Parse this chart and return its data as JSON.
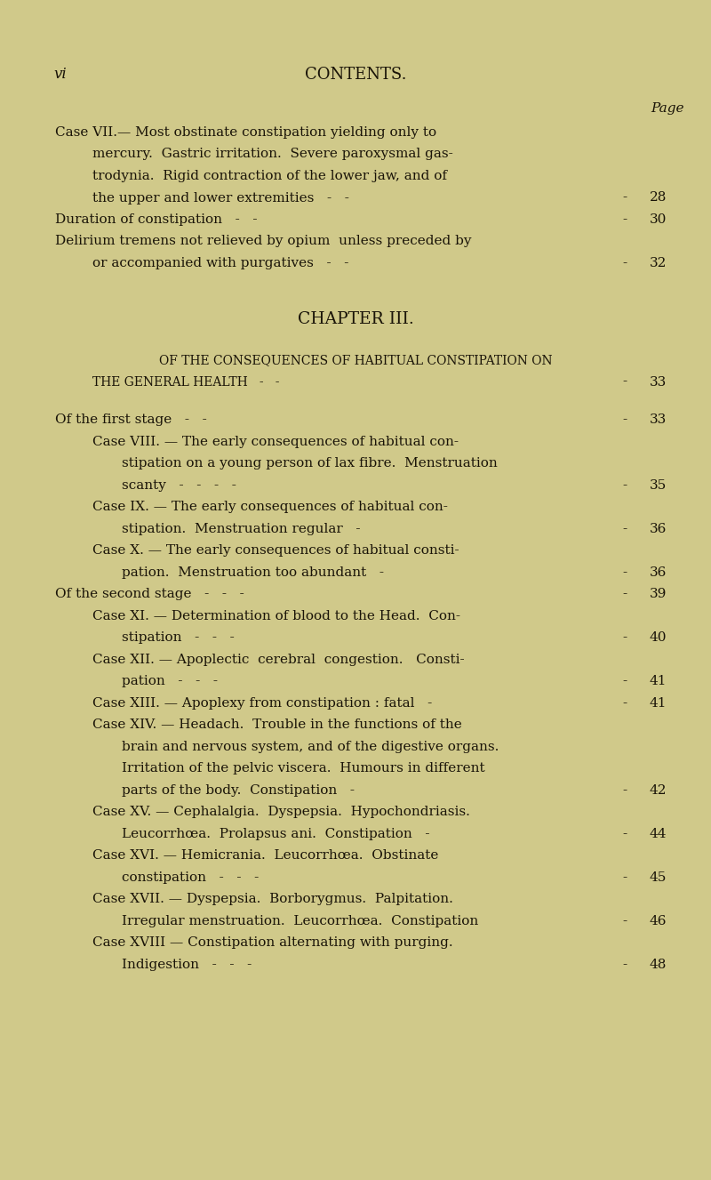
{
  "bg_color": "#d0c98a",
  "text_color": "#1a1408",
  "page_width": 8.0,
  "page_height": 13.27,
  "dpi": 100,
  "header_left": "vi",
  "header_center": "CONTENTS.",
  "page_label": "Page",
  "lines": [
    {
      "indent": 0,
      "style": "case",
      "text": "Case VII.— Most obstinate constipation yielding only to",
      "page": null
    },
    {
      "indent": 1,
      "style": "normal",
      "text": "mercury.  Gastric irritation.  Severe paroxysmal gas-",
      "page": null
    },
    {
      "indent": 1,
      "style": "normal",
      "text": "trodynia.  Rigid contraction of the lower jaw, and of",
      "page": null
    },
    {
      "indent": 1,
      "style": "normal",
      "text": "the upper and lower extremities   -   -",
      "page": "28"
    },
    {
      "indent": 0,
      "style": "normal",
      "text": "Duration of constipation   -   -",
      "page": "30"
    },
    {
      "indent": 0,
      "style": "normal",
      "text": "Delirium tremens not relieved by opium  unless preceded by",
      "page": null
    },
    {
      "indent": 1,
      "style": "normal",
      "text": "or accompanied with purgatives   -   -",
      "page": "32"
    },
    {
      "indent": 0,
      "style": "blank",
      "text": "",
      "page": null
    },
    {
      "indent": 0,
      "style": "blank",
      "text": "",
      "page": null
    },
    {
      "indent": 0,
      "style": "chapter_center",
      "text": "CHAPTER III.",
      "page": null
    },
    {
      "indent": 0,
      "style": "blank",
      "text": "",
      "page": null
    },
    {
      "indent": 0,
      "style": "small_caps_center",
      "text": "OF THE CONSEQUENCES OF HABITUAL CONSTIPATION ON",
      "page": null
    },
    {
      "indent": 1,
      "style": "small_caps_left",
      "text": "THE GENERAL HEALTH   -   -",
      "page": "33"
    },
    {
      "indent": 0,
      "style": "blank",
      "text": "",
      "page": null
    },
    {
      "indent": 0,
      "style": "normal",
      "text": "Of the first stage   -   -",
      "page": "33"
    },
    {
      "indent": 1,
      "style": "case",
      "text": "Case VIII. — The early consequences of habitual con-",
      "page": null
    },
    {
      "indent": 2,
      "style": "normal",
      "text": "stipation on a young person of lax fibre.  Menstruation",
      "page": null
    },
    {
      "indent": 2,
      "style": "normal",
      "text": "scanty   -   -   -   -",
      "page": "35"
    },
    {
      "indent": 1,
      "style": "case",
      "text": "Case IX. — The early consequences of habitual con-",
      "page": null
    },
    {
      "indent": 2,
      "style": "normal",
      "text": "stipation.  Menstruation regular   -",
      "page": "36"
    },
    {
      "indent": 1,
      "style": "case",
      "text": "Case X. — The early consequences of habitual consti-",
      "page": null
    },
    {
      "indent": 2,
      "style": "normal",
      "text": "pation.  Menstruation too abundant   -",
      "page": "36"
    },
    {
      "indent": 0,
      "style": "normal",
      "text": "Of the second stage   -   -   -",
      "page": "39"
    },
    {
      "indent": 1,
      "style": "case",
      "text": "Case XI. — Determination of blood to the Head.  Con-",
      "page": null
    },
    {
      "indent": 2,
      "style": "normal",
      "text": "stipation   -   -   -",
      "page": "40"
    },
    {
      "indent": 1,
      "style": "case",
      "text": "Case XII. — Apoplectic  cerebral  congestion.   Consti-",
      "page": null
    },
    {
      "indent": 2,
      "style": "normal",
      "text": "pation   -   -   -",
      "page": "41"
    },
    {
      "indent": 1,
      "style": "case",
      "text": "Case XIII. — Apoplexy from constipation : fatal   -",
      "page": "41"
    },
    {
      "indent": 1,
      "style": "case",
      "text": "Case XIV. — Headach.  Trouble in the functions of the",
      "page": null
    },
    {
      "indent": 2,
      "style": "normal",
      "text": "brain and nervous system, and of the digestive organs.",
      "page": null
    },
    {
      "indent": 2,
      "style": "normal",
      "text": "Irritation of the pelvic viscera.  Humours in different",
      "page": null
    },
    {
      "indent": 2,
      "style": "normal",
      "text": "parts of the body.  Constipation   -",
      "page": "42"
    },
    {
      "indent": 1,
      "style": "case",
      "text": "Case XV. — Cephalalgia.  Dyspepsia.  Hypochondriasis.",
      "page": null
    },
    {
      "indent": 2,
      "style": "normal",
      "text": "Leucorrhœa.  Prolapsus ani.  Constipation   -",
      "page": "44"
    },
    {
      "indent": 1,
      "style": "case",
      "text": "Case XVI. — Hemicrania.  Leucorrhœa.  Obstinate",
      "page": null
    },
    {
      "indent": 2,
      "style": "normal",
      "text": "constipation   -   -   -",
      "page": "45"
    },
    {
      "indent": 1,
      "style": "case",
      "text": "Case XVII. — Dyspepsia.  Borborygmus.  Palpitation.",
      "page": null
    },
    {
      "indent": 2,
      "style": "normal",
      "text": "Irregular menstruation.  Leucorrhœa.  Constipation",
      "page": "46"
    },
    {
      "indent": 1,
      "style": "case",
      "text": "Case XVIII — Constipation alternating with purging.",
      "page": null
    },
    {
      "indent": 2,
      "style": "normal",
      "text": "Indigestion   -   -   -",
      "page": "48"
    }
  ]
}
